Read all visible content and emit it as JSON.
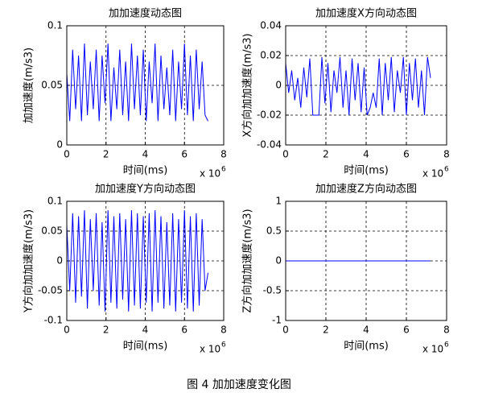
{
  "caption": "图 4  加加速度变化图",
  "chart_data": [
    {
      "type": "line",
      "title": "加加速度动态图",
      "xlabel": "时间(ms)",
      "ylabel": "加加速度(m/s3)",
      "x_multiplier": "x 10",
      "x_exponent": "6",
      "xlim": [
        0,
        8000000
      ],
      "xticks": [
        {
          "value": 0,
          "label": "0"
        },
        {
          "value": 2000000,
          "label": "2"
        },
        {
          "value": 4000000,
          "label": "4"
        },
        {
          "value": 6000000,
          "label": "6"
        },
        {
          "value": 8000000,
          "label": "8"
        }
      ],
      "ylim": [
        0,
        0.1
      ],
      "yticks": [
        0,
        0.05,
        0.1
      ],
      "grid": true,
      "color": "#0000ff",
      "x": [
        0,
        150000,
        300000,
        450000,
        600000,
        750000,
        900000,
        1050000,
        1200000,
        1350000,
        1500000,
        1650000,
        1800000,
        1950000,
        2100000,
        2250000,
        2400000,
        2550000,
        2700000,
        2850000,
        3000000,
        3150000,
        3300000,
        3450000,
        3600000,
        3750000,
        3900000,
        4050000,
        4200000,
        4350000,
        4500000,
        4650000,
        4800000,
        4950000,
        5100000,
        5250000,
        5400000,
        5550000,
        5700000,
        5850000,
        6000000,
        6150000,
        6300000,
        6450000,
        6600000,
        6750000,
        6900000,
        7050000,
        7200000
      ],
      "values": [
        0.06,
        0.02,
        0.08,
        0.03,
        0.075,
        0.02,
        0.085,
        0.025,
        0.07,
        0.03,
        0.08,
        0.02,
        0.075,
        0.035,
        0.085,
        0.02,
        0.065,
        0.03,
        0.08,
        0.025,
        0.07,
        0.02,
        0.085,
        0.03,
        0.075,
        0.025,
        0.08,
        0.02,
        0.07,
        0.035,
        0.085,
        0.02,
        0.075,
        0.03,
        0.065,
        0.025,
        0.08,
        0.02,
        0.07,
        0.03,
        0.085,
        0.025,
        0.075,
        0.02,
        0.08,
        0.03,
        0.07,
        0.025,
        0.02
      ]
    },
    {
      "type": "line",
      "title": "加加速度X方向动态图",
      "xlabel": "时间(ms)",
      "ylabel": "X方向加加速度(m/s3)",
      "x_multiplier": "x 10",
      "x_exponent": "6",
      "xlim": [
        0,
        8000000
      ],
      "xticks": [
        {
          "value": 0,
          "label": "0"
        },
        {
          "value": 2000000,
          "label": "2"
        },
        {
          "value": 4000000,
          "label": "4"
        },
        {
          "value": 6000000,
          "label": "6"
        },
        {
          "value": 8000000,
          "label": "8"
        }
      ],
      "ylim": [
        -0.04,
        0.04
      ],
      "yticks": [
        -0.04,
        -0.02,
        0,
        0.02,
        0.04
      ],
      "grid": true,
      "color": "#0000ff",
      "x": [
        0,
        150000,
        300000,
        450000,
        600000,
        750000,
        900000,
        1050000,
        1200000,
        1350000,
        1500000,
        1650000,
        1800000,
        1950000,
        2100000,
        2250000,
        2400000,
        2550000,
        2700000,
        2850000,
        3000000,
        3150000,
        3300000,
        3450000,
        3600000,
        3750000,
        3900000,
        4050000,
        4200000,
        4350000,
        4500000,
        4650000,
        4800000,
        4950000,
        5100000,
        5250000,
        5400000,
        5550000,
        5700000,
        5850000,
        6000000,
        6150000,
        6300000,
        6450000,
        6600000,
        6750000,
        6900000,
        7050000,
        7200000
      ],
      "values": [
        0.015,
        -0.005,
        0.01,
        -0.01,
        0.005,
        -0.015,
        0.012,
        -0.008,
        0.018,
        -0.02,
        -0.02,
        -0.02,
        0.019,
        -0.012,
        0.015,
        -0.018,
        0.01,
        -0.005,
        0.019,
        -0.015,
        0.01,
        -0.02,
        0.018,
        -0.01,
        0.015,
        -0.018,
        0.012,
        -0.02,
        -0.015,
        -0.005,
        -0.015,
        0.018,
        -0.02,
        0.015,
        -0.01,
        0.019,
        -0.018,
        0.01,
        -0.005,
        0.019,
        -0.02,
        0.015,
        -0.01,
        0.018,
        -0.015,
        0.01,
        -0.02,
        0.019,
        0.005
      ]
    },
    {
      "type": "line",
      "title": "加加速度Y方向动态图",
      "xlabel": "时间(ms)",
      "ylabel": "Y方向加加速度(m/s3)",
      "x_multiplier": "x 10",
      "x_exponent": "6",
      "xlim": [
        0,
        8000000
      ],
      "xticks": [
        {
          "value": 0,
          "label": "0"
        },
        {
          "value": 2000000,
          "label": "2"
        },
        {
          "value": 4000000,
          "label": "4"
        },
        {
          "value": 6000000,
          "label": "6"
        },
        {
          "value": 8000000,
          "label": "8"
        }
      ],
      "ylim": [
        -0.1,
        0.1
      ],
      "yticks": [
        -0.1,
        -0.05,
        0,
        0.05,
        0.1
      ],
      "grid": true,
      "color": "#0000ff",
      "x": [
        0,
        150000,
        300000,
        450000,
        600000,
        750000,
        900000,
        1050000,
        1200000,
        1350000,
        1500000,
        1650000,
        1800000,
        1950000,
        2100000,
        2250000,
        2400000,
        2550000,
        2700000,
        2850000,
        3000000,
        3150000,
        3300000,
        3450000,
        3600000,
        3750000,
        3900000,
        4050000,
        4200000,
        4350000,
        4500000,
        4650000,
        4800000,
        4950000,
        5100000,
        5250000,
        5400000,
        5550000,
        5700000,
        5850000,
        6000000,
        6150000,
        6300000,
        6450000,
        6600000,
        6750000,
        6900000,
        7050000,
        7200000
      ],
      "values": [
        0.06,
        -0.05,
        0.08,
        -0.07,
        0.075,
        -0.06,
        0.085,
        -0.08,
        0.07,
        -0.05,
        0.08,
        -0.075,
        0.065,
        -0.085,
        0.085,
        -0.07,
        0.075,
        -0.08,
        0.08,
        -0.065,
        0.07,
        -0.085,
        0.085,
        -0.075,
        0.08,
        -0.08,
        0.075,
        -0.07,
        0.08,
        -0.085,
        0.085,
        -0.07,
        0.075,
        -0.08,
        0.065,
        -0.075,
        0.08,
        -0.085,
        0.07,
        -0.07,
        0.085,
        -0.08,
        0.075,
        -0.085,
        0.08,
        -0.075,
        0.07,
        -0.05,
        -0.02
      ]
    },
    {
      "type": "line",
      "title": "加加速度Z方向动态图",
      "xlabel": "时间(ms)",
      "ylabel": "Z方向加加速度(m/s3)",
      "x_multiplier": "x 10",
      "x_exponent": "6",
      "xlim": [
        0,
        8000000
      ],
      "xticks": [
        {
          "value": 0,
          "label": "0"
        },
        {
          "value": 2000000,
          "label": "2"
        },
        {
          "value": 4000000,
          "label": "4"
        },
        {
          "value": 6000000,
          "label": "6"
        },
        {
          "value": 8000000,
          "label": "8"
        }
      ],
      "ylim": [
        -1,
        1
      ],
      "yticks": [
        -1,
        -0.5,
        0,
        0.5,
        1
      ],
      "grid": true,
      "color": "#0000ff",
      "x": [
        0,
        7200000
      ],
      "values": [
        0,
        0
      ]
    }
  ]
}
